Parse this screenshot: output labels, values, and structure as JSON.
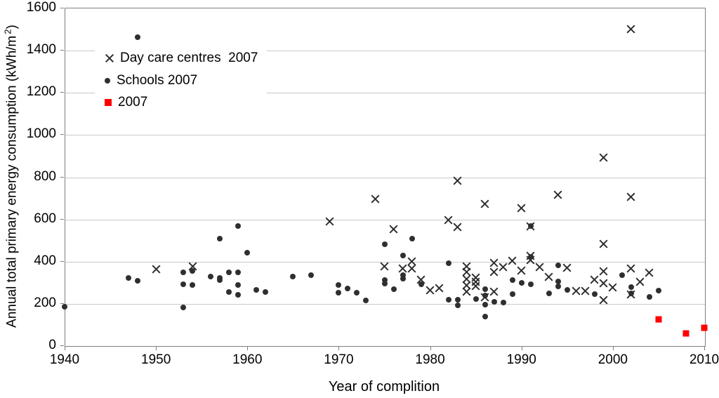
{
  "chart_data": {
    "type": "scatter",
    "title": "",
    "xlabel": "Year of complition",
    "ylabel": "Annual total primary energy consumption (kWh/m2)",
    "ylabel_parts": {
      "main": "Annual total primary energy consumption (kWh/m",
      "sup": "2",
      "end": ")"
    },
    "xlim": [
      1940,
      2010
    ],
    "ylim": [
      0,
      1600
    ],
    "x_ticks": [
      1940,
      1950,
      1960,
      1970,
      1980,
      1990,
      2000,
      2010
    ],
    "y_ticks": [
      0,
      200,
      400,
      600,
      800,
      1000,
      1200,
      1400,
      1600
    ],
    "grid": "horizontal-only",
    "legend_position": "inside-top-left",
    "colors": {
      "marker_dark": "#2f2f2f",
      "accent_red": "#ff0000",
      "gridline": "#c9c9c9",
      "axis": "#7f7f7f"
    },
    "series": [
      {
        "name": "Day care centres  2007",
        "marker": "x",
        "color": "#2f2f2f",
        "points": [
          [
            1950,
            360
          ],
          [
            1954,
            375
          ],
          [
            1969,
            588
          ],
          [
            1974,
            695
          ],
          [
            1975,
            375
          ],
          [
            1976,
            550
          ],
          [
            1977,
            365
          ],
          [
            1978,
            396
          ],
          [
            1978,
            365
          ],
          [
            1979,
            310
          ],
          [
            1980,
            262
          ],
          [
            1981,
            270
          ],
          [
            1982,
            595
          ],
          [
            1983,
            780
          ],
          [
            1983,
            560
          ],
          [
            1984,
            375
          ],
          [
            1984,
            348
          ],
          [
            1984,
            315
          ],
          [
            1984,
            285
          ],
          [
            1984,
            255
          ],
          [
            1985,
            320
          ],
          [
            1985,
            300
          ],
          [
            1985,
            280
          ],
          [
            1986,
            670
          ],
          [
            1986,
            228
          ],
          [
            1987,
            390
          ],
          [
            1987,
            348
          ],
          [
            1987,
            254
          ],
          [
            1988,
            370
          ],
          [
            1989,
            400
          ],
          [
            1990,
            650
          ],
          [
            1990,
            355
          ],
          [
            1991,
            565
          ],
          [
            1991,
            425
          ],
          [
            1991,
            403
          ],
          [
            1992,
            372
          ],
          [
            1993,
            325
          ],
          [
            1994,
            715
          ],
          [
            1995,
            366
          ],
          [
            1996,
            258
          ],
          [
            1997,
            258
          ],
          [
            1998,
            312
          ],
          [
            1999,
            890
          ],
          [
            1999,
            480
          ],
          [
            1999,
            352
          ],
          [
            1999,
            293
          ],
          [
            1999,
            215
          ],
          [
            2000,
            276
          ],
          [
            2002,
            1500
          ],
          [
            2002,
            705
          ],
          [
            2002,
            365
          ],
          [
            2002,
            240
          ],
          [
            2003,
            300
          ],
          [
            2004,
            345
          ]
        ]
      },
      {
        "name": "Schools 2007",
        "marker": "circle",
        "color": "#2f2f2f",
        "points": [
          [
            1940,
            183
          ],
          [
            1947,
            318
          ],
          [
            1948,
            1460
          ],
          [
            1948,
            305
          ],
          [
            1953,
            345
          ],
          [
            1953,
            290
          ],
          [
            1953,
            180
          ],
          [
            1954,
            352
          ],
          [
            1954,
            287
          ],
          [
            1956,
            326
          ],
          [
            1957,
            505
          ],
          [
            1957,
            320
          ],
          [
            1957,
            308
          ],
          [
            1958,
            346
          ],
          [
            1958,
            254
          ],
          [
            1959,
            565
          ],
          [
            1959,
            346
          ],
          [
            1959,
            286
          ],
          [
            1959,
            240
          ],
          [
            1960,
            440
          ],
          [
            1961,
            264
          ],
          [
            1962,
            254
          ],
          [
            1965,
            326
          ],
          [
            1967,
            332
          ],
          [
            1970,
            287
          ],
          [
            1970,
            251
          ],
          [
            1971,
            271
          ],
          [
            1972,
            251
          ],
          [
            1973,
            212
          ],
          [
            1975,
            480
          ],
          [
            1975,
            310
          ],
          [
            1975,
            293
          ],
          [
            1976,
            267
          ],
          [
            1977,
            425
          ],
          [
            1977,
            332
          ],
          [
            1977,
            316
          ],
          [
            1978,
            505
          ],
          [
            1979,
            290
          ],
          [
            1982,
            390
          ],
          [
            1982,
            217
          ],
          [
            1983,
            215
          ],
          [
            1983,
            190
          ],
          [
            1985,
            220
          ],
          [
            1986,
            265
          ],
          [
            1986,
            237
          ],
          [
            1986,
            193
          ],
          [
            1986,
            135
          ],
          [
            1987,
            205
          ],
          [
            1988,
            203
          ],
          [
            1989,
            310
          ],
          [
            1989,
            243
          ],
          [
            1990,
            297
          ],
          [
            1991,
            565
          ],
          [
            1991,
            420
          ],
          [
            1991,
            291
          ],
          [
            1993,
            246
          ],
          [
            1994,
            380
          ],
          [
            1994,
            303
          ],
          [
            1994,
            278
          ],
          [
            1995,
            264
          ],
          [
            1998,
            243
          ],
          [
            2001,
            334
          ],
          [
            2002,
            276
          ],
          [
            2002,
            245
          ],
          [
            2004,
            230
          ],
          [
            2005,
            260
          ]
        ]
      },
      {
        "name": "2007",
        "marker": "square",
        "color": "#ff0000",
        "points": [
          [
            2005,
            122
          ],
          [
            2008,
            55
          ],
          [
            2010,
            82
          ]
        ]
      }
    ]
  }
}
